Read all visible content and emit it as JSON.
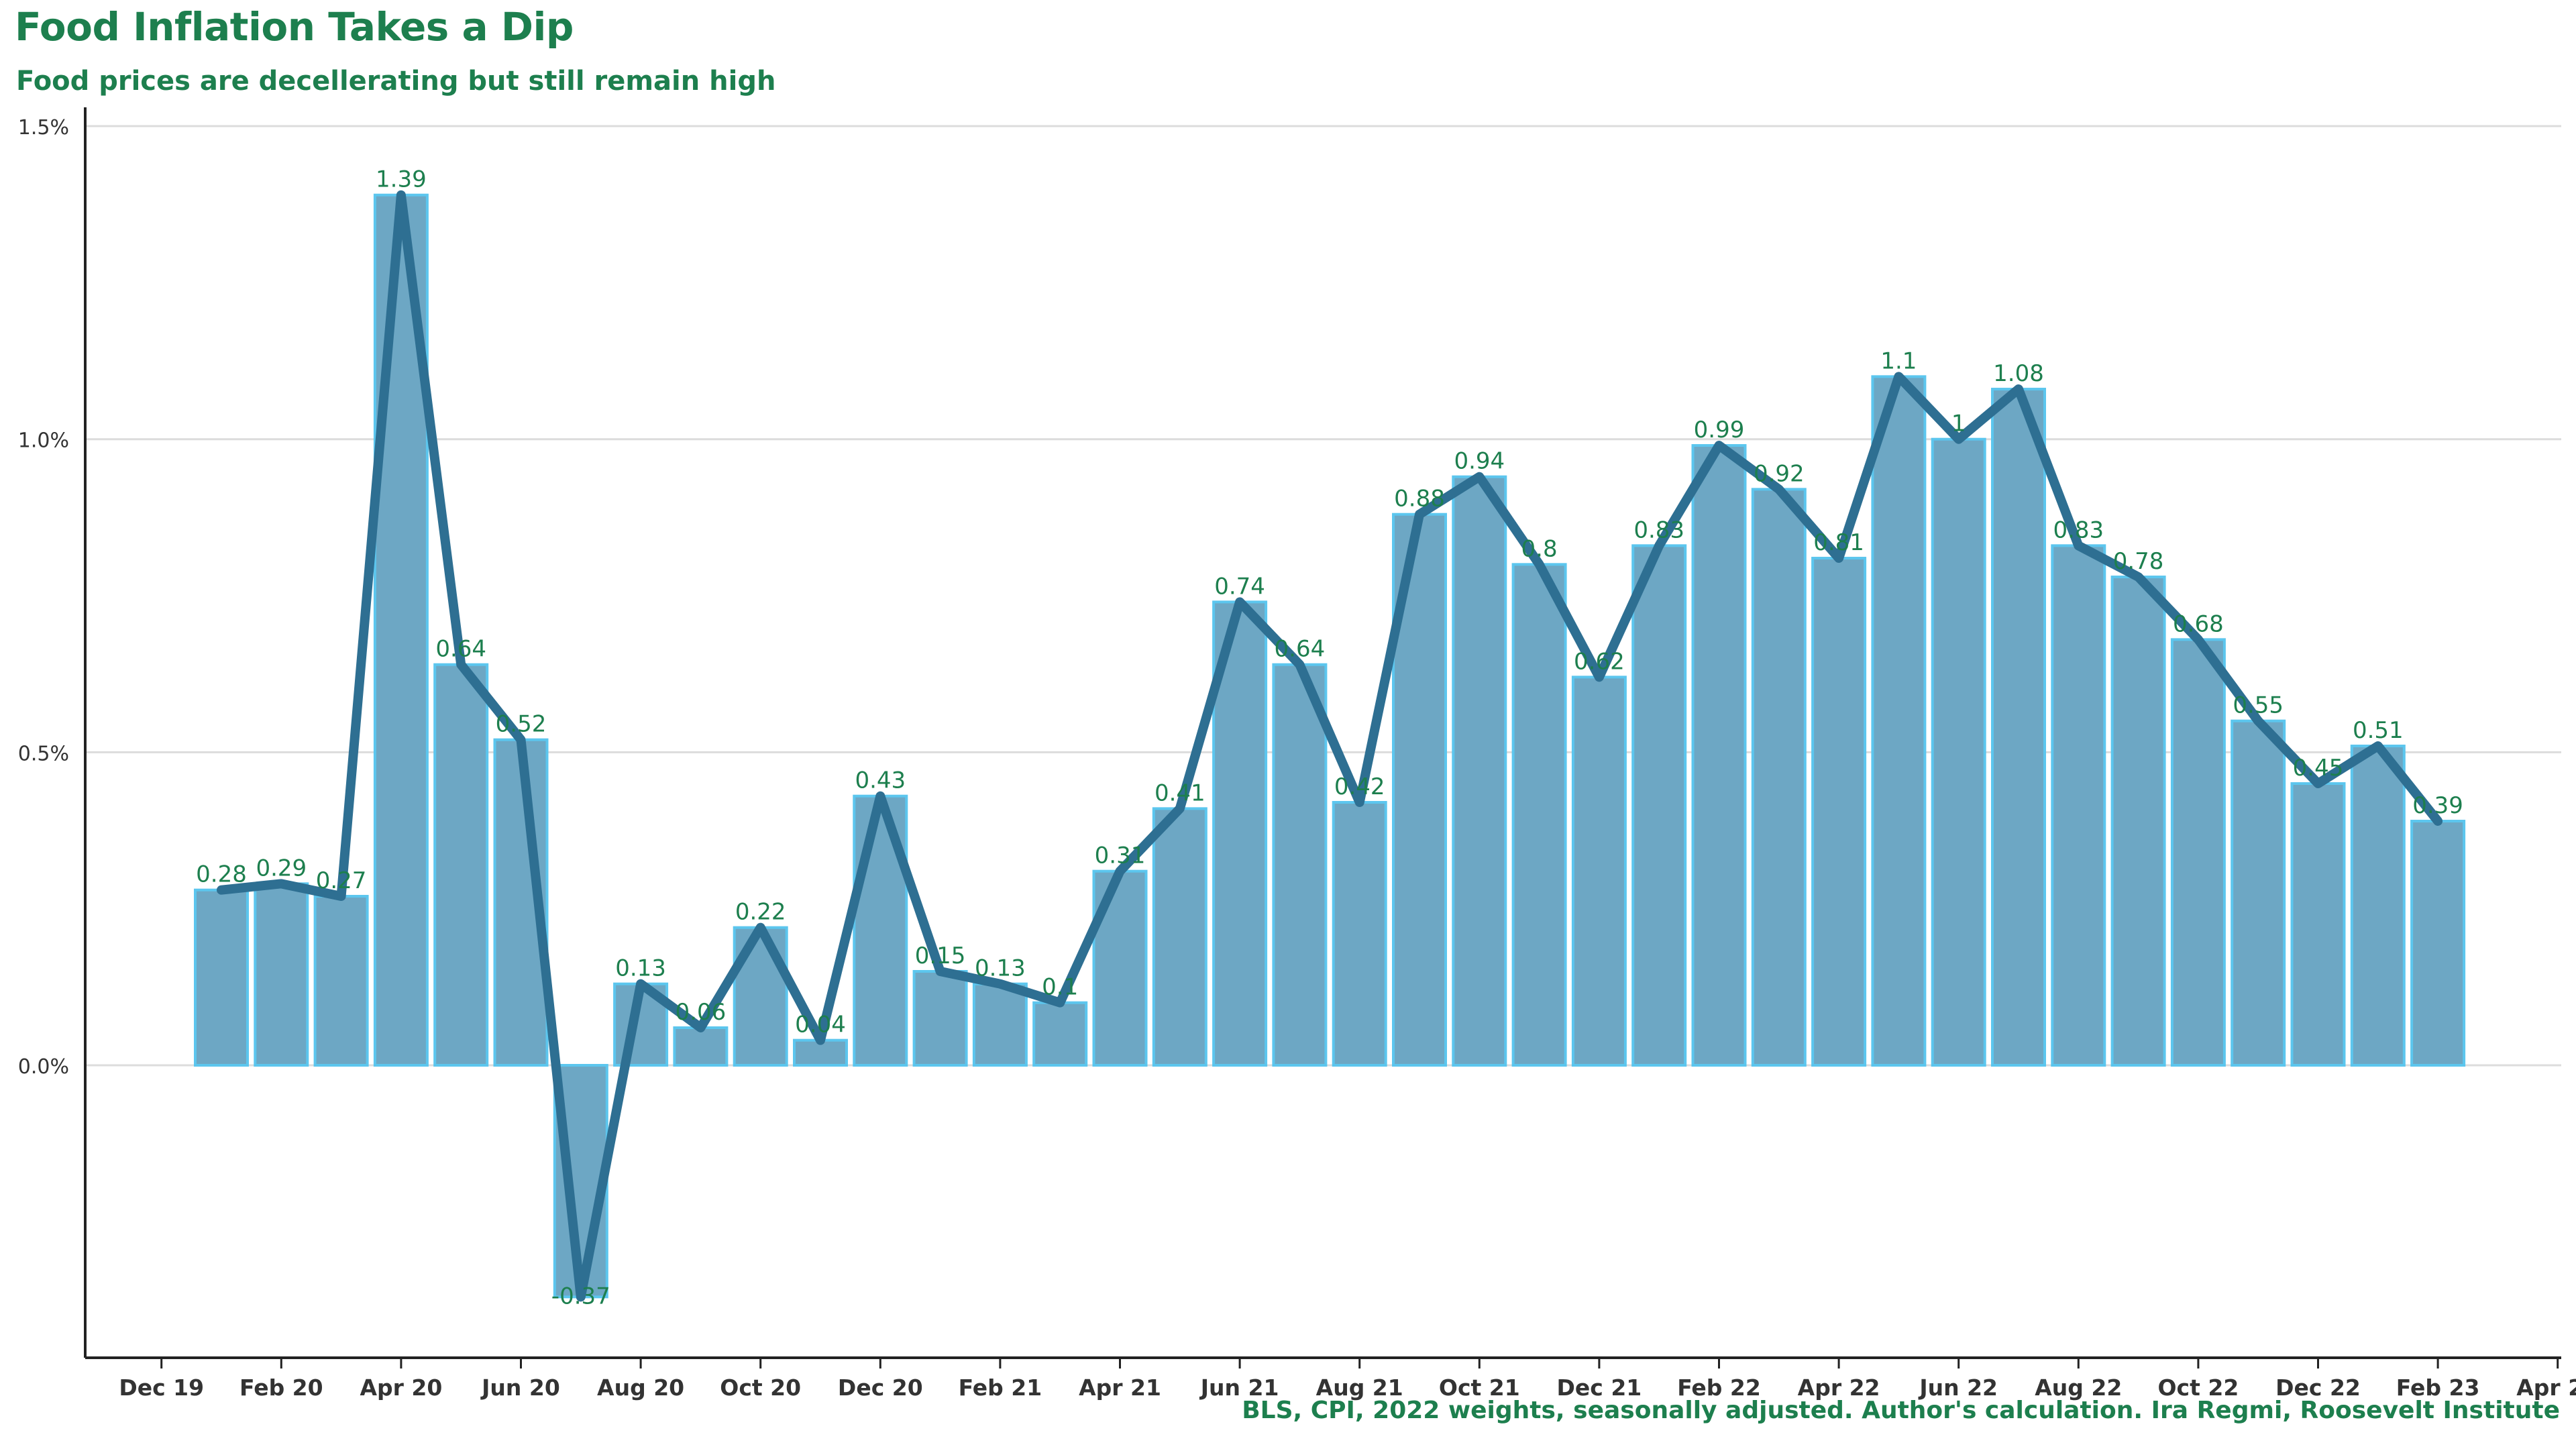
{
  "chart_data": {
    "type": "bar",
    "overlay": "line",
    "title": "Food Inflation Takes a Dip",
    "subtitle": "Food prices are decellerating but still remain high",
    "caption": "BLS, CPI, 2022 weights, seasonally adjusted. Author's calculation. Ira Regmi, Roosevelt Institute",
    "xlabel": "",
    "ylabel": "",
    "ylim": [
      -0.45,
      1.5
    ],
    "yticks": [
      0.0,
      0.5,
      1.0,
      1.5
    ],
    "ytick_labels": [
      "0.0%",
      "0.5%",
      "1.0%",
      "1.5%"
    ],
    "xtick_labels": [
      "Dec 19",
      "Feb 20",
      "Apr 20",
      "Jun 20",
      "Aug 20",
      "Oct 20",
      "Dec 20",
      "Feb 21",
      "Apr 21",
      "Jun 21",
      "Aug 21",
      "Oct 21",
      "Dec 21",
      "Feb 22",
      "Apr 22",
      "Jun 22",
      "Aug 22",
      "Oct 22",
      "Dec 22",
      "Feb 23",
      "Apr 23"
    ],
    "grid": true,
    "legend": "none",
    "colors": {
      "bar_fill": "#6da7c4",
      "bar_edge": "#5cc6ee",
      "line": "#2e6f92",
      "labels": "#1d7f4e",
      "text": "#1d7f4e"
    },
    "months": [
      "Jan 20",
      "Feb 20",
      "Mar 20",
      "Apr 20",
      "May 20",
      "Jun 20",
      "Jul 20",
      "Aug 20",
      "Sep 20",
      "Oct 20",
      "Nov 20",
      "Dec 20",
      "Jan 21",
      "Feb 21",
      "Mar 21",
      "Apr 21",
      "May 21",
      "Jun 21",
      "Jul 21",
      "Aug 21",
      "Sep 21",
      "Oct 21",
      "Nov 21",
      "Dec 21",
      "Jan 22",
      "Feb 22",
      "Mar 22",
      "Apr 22",
      "May 22",
      "Jun 22",
      "Jul 22",
      "Aug 22",
      "Sep 22",
      "Oct 22",
      "Nov 22",
      "Dec 22",
      "Jan 23",
      "Feb 23"
    ],
    "values": [
      0.28,
      0.29,
      0.27,
      1.39,
      0.64,
      0.52,
      -0.37,
      0.13,
      0.06,
      0.22,
      0.04,
      0.43,
      0.15,
      0.13,
      0.1,
      0.31,
      0.41,
      0.74,
      0.64,
      0.42,
      0.88,
      0.94,
      0.8,
      0.62,
      0.83,
      0.99,
      0.92,
      0.81,
      1.1,
      1,
      1.08,
      0.83,
      0.78,
      0.68,
      0.55,
      0.45,
      0.51,
      0.39
    ]
  }
}
